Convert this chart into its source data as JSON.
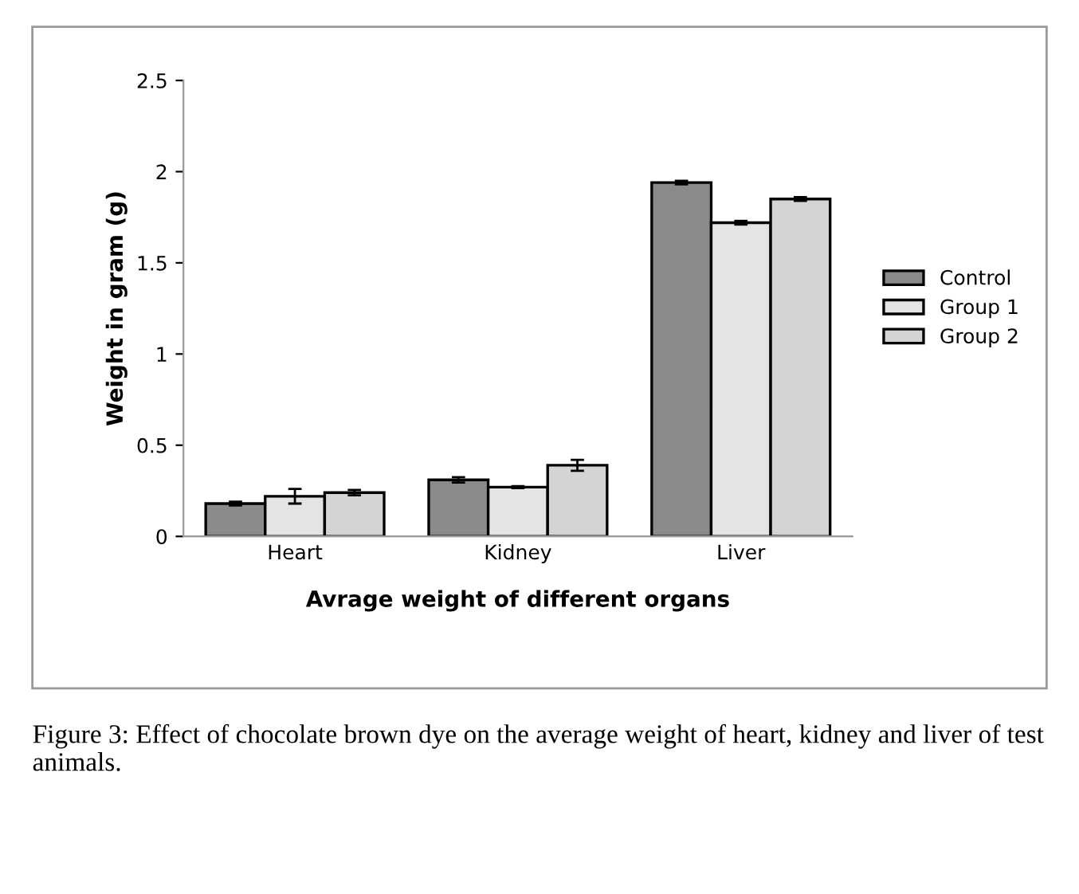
{
  "chart_data": {
    "type": "bar",
    "xlabel": "Avrage weight of different organs",
    "ylabel": "Weight in gram (g)",
    "categories": [
      "Heart",
      "Kidney",
      "Liver"
    ],
    "series": [
      {
        "name": "Control",
        "color": "#8a8a8a",
        "values": [
          0.18,
          0.31,
          1.94
        ],
        "errors": [
          0.01,
          0.015,
          0.01
        ]
      },
      {
        "name": "Group 1",
        "color": "#e4e4e4",
        "values": [
          0.22,
          0.27,
          1.72
        ],
        "errors": [
          0.04,
          0.005,
          0.01
        ]
      },
      {
        "name": "Group 2",
        "color": "#d4d4d4",
        "values": [
          0.24,
          0.39,
          1.85
        ],
        "errors": [
          0.015,
          0.03,
          0.01
        ]
      }
    ],
    "ylim": [
      0,
      2.5
    ],
    "yticks": [
      0,
      0.5,
      1,
      1.5,
      2,
      2.5
    ],
    "grid": false,
    "legend": "right",
    "annotations": [
      "Figure 3: Effect of chocolate brown dye on the average weight of heart, kidney and liver of test animals."
    ]
  }
}
